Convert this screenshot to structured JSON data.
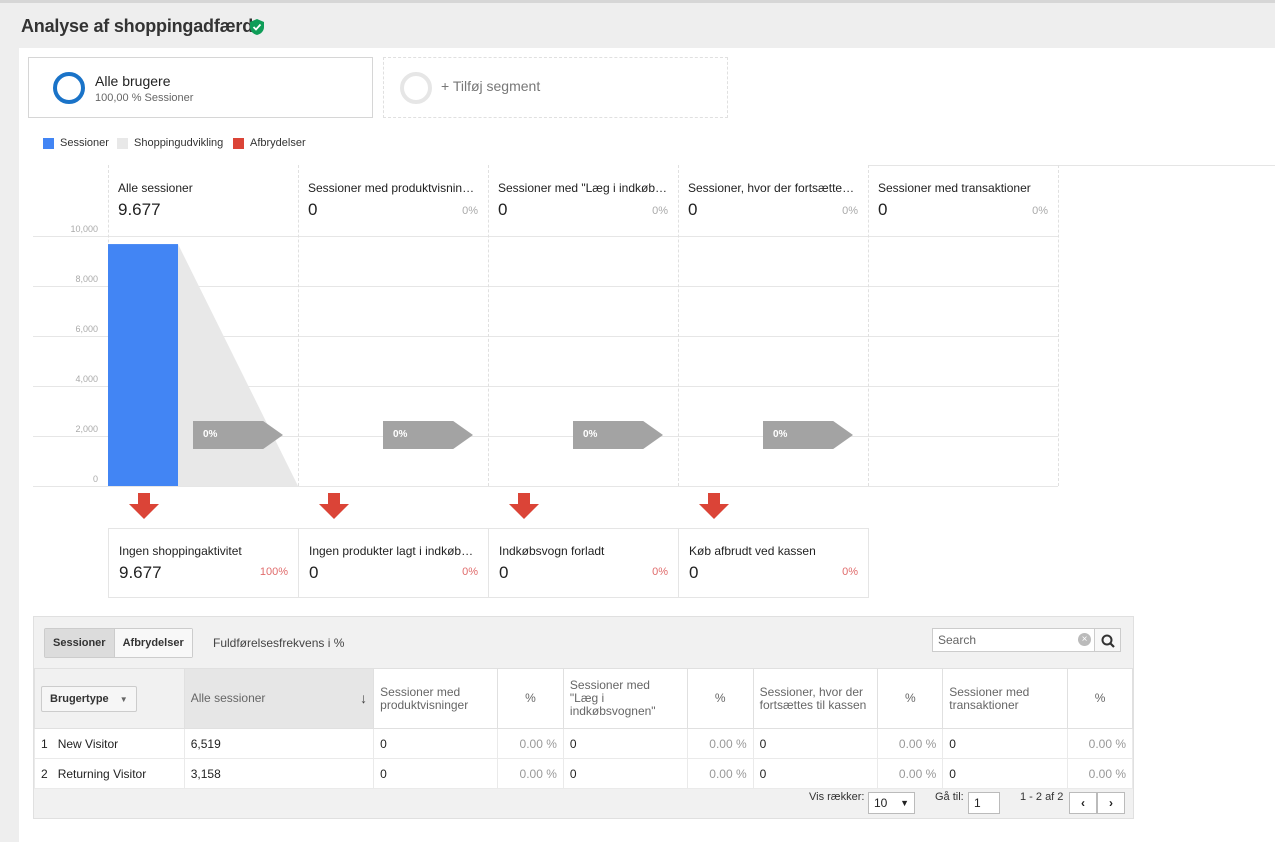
{
  "page": {
    "title": "Analyse af shoppingadfærd"
  },
  "segment": {
    "name": "Alle brugere",
    "sub": "100,00 % Sessioner",
    "add_label": "+ Tilføj segment"
  },
  "legend": [
    {
      "label": "Sessioner",
      "color": "#4285f4"
    },
    {
      "label": "Shoppingudvikling",
      "color": "#e8e8e8"
    },
    {
      "label": "Afbrydelser",
      "color": "#db4437"
    }
  ],
  "funnel": {
    "y_ticks": [
      "10,000",
      "8,000",
      "6,000",
      "4,000",
      "2,000",
      "0"
    ],
    "stages": [
      {
        "name": "Alle sessioner",
        "value": "9.677",
        "pct": ""
      },
      {
        "name": "Sessioner med produktvisninger",
        "value": "0",
        "pct": "0%"
      },
      {
        "name": "Sessioner med \"Læg i indkøbsvognen\"",
        "value": "0",
        "pct": "0%"
      },
      {
        "name": "Sessioner, hvor der fortsættes til kassen",
        "value": "0",
        "pct": "0%"
      },
      {
        "name": "Sessioner med transaktioner",
        "value": "0",
        "pct": "0%"
      }
    ],
    "stage_sessions": [
      9677,
      0,
      0,
      0,
      0
    ],
    "ymax": 10000,
    "arrows": [
      "0%",
      "0%",
      "0%",
      "0%"
    ],
    "drops": [
      {
        "name": "Ingen shoppingaktivitet",
        "value": "9.677",
        "pct": "100%"
      },
      {
        "name": "Ingen produkter lagt i indkøbsvognen",
        "value": "0",
        "pct": "0%"
      },
      {
        "name": "Indkøbsvogn forladt",
        "value": "0",
        "pct": "0%"
      },
      {
        "name": "Køb afbrudt ved kassen",
        "value": "0",
        "pct": "0%"
      }
    ]
  },
  "table": {
    "tabs": [
      "Sessioner",
      "Afbrydelser"
    ],
    "completion_label": "Fuldførelsesfrekvens i %",
    "search_placeholder": "Search",
    "dimension_label": "Brugertype",
    "headers": [
      "Alle sessioner",
      "Sessioner med produktvisninger",
      "%",
      "Sessioner med \"Læg i indkøbsvognen\"",
      "%",
      "Sessioner, hvor der fortsættes til kassen",
      "%",
      "Sessioner med transaktioner",
      "%"
    ],
    "rows": [
      {
        "idx": "1",
        "name": "New Visitor",
        "cells": [
          "6,519",
          "0",
          "0.00 %",
          "0",
          "0.00 %",
          "0",
          "0.00 %",
          "0",
          "0.00 %"
        ]
      },
      {
        "idx": "2",
        "name": "Returning Visitor",
        "cells": [
          "3,158",
          "0",
          "0.00 %",
          "0",
          "0.00 %",
          "0",
          "0.00 %",
          "0",
          "0.00 %"
        ]
      }
    ],
    "footer": {
      "rows_label": "Vis rækker:",
      "rows_value": "10",
      "goto_label": "Gå til:",
      "goto_value": "1",
      "range": "1 - 2 af 2"
    }
  }
}
